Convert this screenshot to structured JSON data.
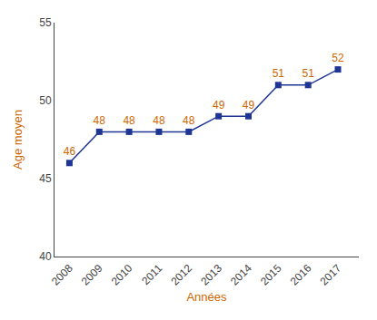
{
  "chart_data": {
    "type": "line",
    "x": [
      2008,
      2009,
      2010,
      2011,
      2012,
      2013,
      2014,
      2015,
      2016,
      2017
    ],
    "values": [
      46,
      48,
      48,
      48,
      48,
      49,
      49,
      51,
      51,
      52
    ],
    "color": "#1F3594",
    "marker": "square",
    "data_labels": true,
    "xlabel": "Années",
    "ylabel": "Age moyen",
    "xlim": [
      2007.5,
      2017.7
    ],
    "xticks": [
      2008,
      2009,
      2010,
      2011,
      2012,
      2013,
      2014,
      2015,
      2016,
      2017
    ],
    "ylim": [
      40,
      55
    ],
    "yticks": [
      40,
      45,
      50,
      55
    ],
    "grid": false
  }
}
